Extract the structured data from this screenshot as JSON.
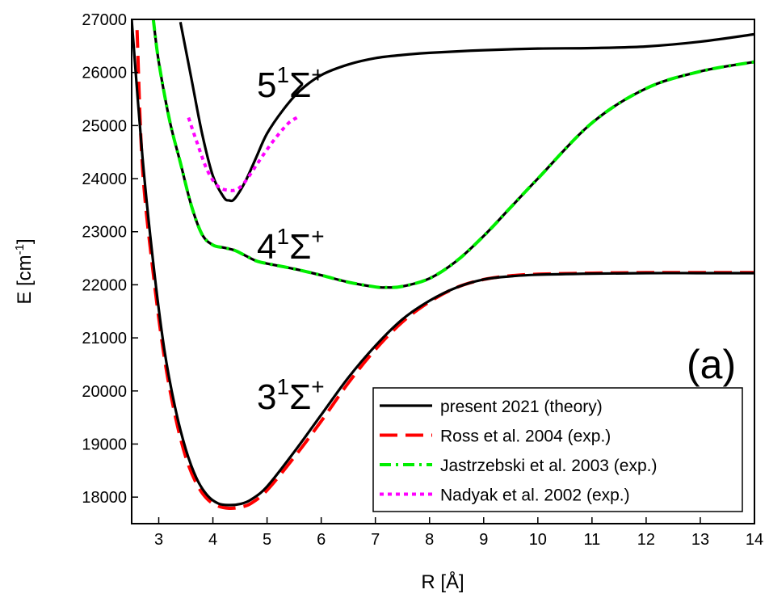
{
  "chart_data": {
    "type": "line",
    "xlabel": "R [Å]",
    "ylabel": "E [cm-1]",
    "ylabel_main": "E [cm",
    "ylabel_sup": "-1",
    "ylabel_close": "]",
    "xlim": [
      2.5,
      14
    ],
    "ylim": [
      17500,
      27000
    ],
    "x_ticks": [
      3,
      4,
      5,
      6,
      7,
      8,
      9,
      10,
      11,
      12,
      13,
      14
    ],
    "y_ticks": [
      18000,
      19000,
      20000,
      21000,
      22000,
      23000,
      24000,
      25000,
      26000,
      27000
    ],
    "panel_label": "(a)",
    "state_labels": [
      {
        "prefix": "5",
        "sup": "1",
        "sym": "Σ",
        "sup2": "+"
      },
      {
        "prefix": "4",
        "sup": "1",
        "sym": "Σ",
        "sup2": "+"
      },
      {
        "prefix": "3",
        "sup": "1",
        "sym": "Σ",
        "sup2": "+"
      }
    ],
    "legend_position": "bottom-right",
    "series": [
      {
        "name": "present 2021 (theory)",
        "color": "#000000",
        "style": "solid",
        "curves": [
          {
            "state": "3",
            "x": [
              2.5,
              2.7,
              2.9,
              3.1,
              3.3,
              3.5,
              3.7,
              3.9,
              4.1,
              4.3,
              4.5,
              4.7,
              5.0,
              5.5,
              6.0,
              6.5,
              7.0,
              7.5,
              8.0,
              8.5,
              9.0,
              9.5,
              10,
              11,
              12,
              13,
              14
            ],
            "y": [
              27000,
              24400,
              22400,
              20800,
              19700,
              18900,
              18350,
              18030,
              17880,
              17850,
              17870,
              17950,
              18200,
              18850,
              19550,
              20250,
              20850,
              21350,
              21700,
              21950,
              22100,
              22160,
              22190,
              22210,
              22220,
              22220,
              22220
            ]
          },
          {
            "state": "4",
            "x": [
              2.9,
              3.0,
              3.2,
              3.4,
              3.6,
              3.8,
              4.0,
              4.2,
              4.4,
              4.6,
              4.8,
              5.0,
              5.5,
              6.0,
              6.5,
              7.0,
              7.2,
              7.5,
              8.0,
              8.5,
              9.0,
              9.5,
              10,
              11,
              12,
              13,
              14
            ],
            "y": [
              27000,
              26200,
              25100,
              24300,
              23500,
              22950,
              22750,
              22700,
              22650,
              22550,
              22450,
              22400,
              22300,
              22180,
              22050,
              21960,
              21950,
              21970,
              22120,
              22450,
              22920,
              23460,
              24000,
              25050,
              25700,
              26020,
              26200
            ]
          },
          {
            "state": "5",
            "x": [
              3.4,
              3.6,
              3.8,
              4.0,
              4.2,
              4.3,
              4.4,
              4.6,
              4.8,
              5.0,
              5.3,
              5.6,
              6.0,
              6.5,
              7.0,
              7.5,
              8.0,
              9.0,
              10,
              11,
              12,
              13,
              14
            ],
            "y": [
              26950,
              25900,
              24850,
              24050,
              23650,
              23590,
              23620,
              23950,
              24400,
              24850,
              25300,
              25650,
              25950,
              26150,
              26270,
              26330,
              26370,
              26420,
              26450,
              26460,
              26490,
              26580,
              26720
            ]
          }
        ]
      },
      {
        "name": "Ross et al. 2004 (exp.)",
        "color": "#ff0000",
        "style": "dashed",
        "curves": [
          {
            "state": "3",
            "x": [
              2.6,
              2.7,
              2.9,
              3.1,
              3.3,
              3.5,
              3.7,
              3.9,
              4.1,
              4.3,
              4.5,
              4.7,
              5.0,
              5.5,
              6.0,
              6.5,
              7.0,
              7.5,
              8.0,
              8.5,
              9.0,
              9.5,
              10,
              11,
              12,
              13,
              14
            ],
            "y": [
              26800,
              24200,
              22200,
              20650,
              19550,
              18750,
              18250,
              17960,
              17830,
              17790,
              17810,
              17880,
              18130,
              18750,
              19430,
              20150,
              20780,
              21300,
              21680,
              21950,
              22100,
              22170,
              22200,
              22220,
              22230,
              22230,
              22230
            ]
          }
        ]
      },
      {
        "name": "Jastrzebski et al. 2003 (exp.)",
        "color": "#00ee00",
        "style": "dashdot",
        "curves": [
          {
            "state": "4",
            "x": [
              2.9,
              3.0,
              3.2,
              3.4,
              3.6,
              3.8,
              4.0,
              4.2,
              4.4,
              4.6,
              4.8,
              5.0,
              5.5,
              6.0,
              6.5,
              7.0,
              7.2,
              7.5,
              8.0,
              8.5,
              9.0,
              9.5,
              10,
              11,
              12,
              13,
              14
            ],
            "y": [
              27000,
              26200,
              25100,
              24300,
              23500,
              22950,
              22750,
              22700,
              22650,
              22550,
              22450,
              22400,
              22300,
              22180,
              22050,
              21960,
              21950,
              21970,
              22120,
              22450,
              22920,
              23460,
              24000,
              25050,
              25700,
              26020,
              26200
            ]
          }
        ]
      },
      {
        "name": "Nadyak et al. 2002 (exp.)",
        "color": "#ff00ff",
        "style": "dotted",
        "curves": [
          {
            "state": "5",
            "x": [
              3.55,
              3.7,
              3.9,
              4.1,
              4.3,
              4.45,
              4.6,
              4.8,
              5.0,
              5.2,
              5.4,
              5.55
            ],
            "y": [
              25150,
              24700,
              24150,
              23850,
              23780,
              23800,
              23950,
              24250,
              24550,
              24820,
              25050,
              25150
            ]
          }
        ]
      }
    ]
  }
}
